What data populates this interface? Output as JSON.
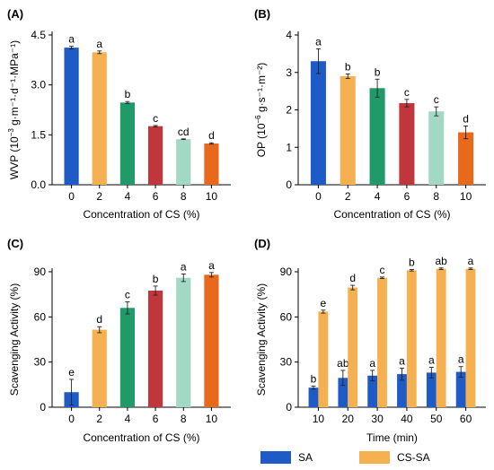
{
  "chart_data": [
    {
      "id": "A",
      "type": "bar",
      "panel_label": "(A)",
      "categories": [
        "0",
        "2",
        "4",
        "6",
        "8",
        "10"
      ],
      "values": [
        4.12,
        3.98,
        2.47,
        1.76,
        1.37,
        1.24
      ],
      "errors": [
        0.04,
        0.04,
        0.03,
        0.02,
        0.01,
        0.02
      ],
      "labels": [
        "a",
        "a",
        "b",
        "c",
        "cd",
        "d"
      ],
      "colors": [
        "#1f5bc6",
        "#f5b04f",
        "#1f9a68",
        "#c0363c",
        "#a3d9c4",
        "#e8681c"
      ],
      "xlabel": "Concentration of CS (%)",
      "ylabel_main": "WVP (10",
      "ylabel_exp": "−3",
      "ylabel_rest": " g·m⁻¹·d⁻¹·MPa⁻¹)",
      "ylim": [
        0,
        4.5
      ],
      "yticks": [
        0.0,
        1.5,
        3.0,
        4.5
      ],
      "ytick_labels": [
        "0.0",
        "1.5",
        "3.0",
        "4.5"
      ]
    },
    {
      "id": "B",
      "type": "bar",
      "panel_label": "(B)",
      "categories": [
        "0",
        "2",
        "4",
        "6",
        "8",
        "10"
      ],
      "values": [
        3.3,
        2.9,
        2.58,
        2.18,
        1.96,
        1.4
      ],
      "errors": [
        0.33,
        0.06,
        0.24,
        0.1,
        0.12,
        0.17
      ],
      "labels": [
        "a",
        "b",
        "b",
        "c",
        "c",
        "d"
      ],
      "colors": [
        "#1f5bc6",
        "#f5b04f",
        "#1f9a68",
        "#c0363c",
        "#a3d9c4",
        "#e8681c"
      ],
      "xlabel": "Concentration of CS (%)",
      "ylabel_main": "OP (10",
      "ylabel_exp": "−6",
      "ylabel_rest": " g·s⁻¹·m⁻²)",
      "ylim": [
        0,
        4
      ],
      "yticks": [
        0,
        1,
        2,
        3,
        4
      ],
      "ytick_labels": [
        "0",
        "1",
        "2",
        "3",
        "4"
      ]
    },
    {
      "id": "C",
      "type": "bar",
      "panel_label": "(C)",
      "categories": [
        "0",
        "2",
        "4",
        "6",
        "8",
        "10"
      ],
      "values": [
        10,
        51.5,
        66,
        77.5,
        86,
        88
      ],
      "errors": [
        8.5,
        2,
        4,
        3,
        2.5,
        1.5
      ],
      "labels": [
        "e",
        "d",
        "c",
        "b",
        "a",
        "a"
      ],
      "colors": [
        "#1f5bc6",
        "#f5b04f",
        "#1f9a68",
        "#c0363c",
        "#a3d9c4",
        "#e8681c"
      ],
      "xlabel": "Concentration of CS (%)",
      "ylabel_main": "Scavenging Activity (%)",
      "ylabel_exp": "",
      "ylabel_rest": "",
      "ylim": [
        0,
        90
      ],
      "yticks": [
        0,
        30,
        60,
        90
      ],
      "ytick_labels": [
        "0",
        "30",
        "60",
        "90"
      ]
    },
    {
      "id": "D",
      "type": "grouped-bar",
      "panel_label": "(D)",
      "categories": [
        "10",
        "20",
        "30",
        "40",
        "50",
        "60"
      ],
      "series": [
        {
          "name": "SA",
          "color": "#1f5bc6",
          "values": [
            13,
            19.5,
            21,
            22,
            23,
            23.5
          ],
          "errors": [
            1,
            5,
            3.5,
            4,
            3.5,
            3.5
          ],
          "labels": [
            "b",
            "ab",
            "a",
            "a",
            "a",
            "a"
          ]
        },
        {
          "name": "CS-SA",
          "color": "#f5b04f",
          "values": [
            63.5,
            79.5,
            86,
            91,
            92,
            92
          ],
          "errors": [
            1,
            1.5,
            0.5,
            0.5,
            0.5,
            0.5
          ],
          "labels": [
            "e",
            "d",
            "c",
            "b",
            "ab",
            "a"
          ]
        }
      ],
      "xlabel": "Time (min)",
      "ylabel_main": "Scavenging Activity (%)",
      "ylabel_exp": "",
      "ylabel_rest": "",
      "ylim": [
        0,
        90
      ],
      "yticks": [
        0,
        30,
        60,
        90
      ],
      "ytick_labels": [
        "0",
        "30",
        "60",
        "90"
      ],
      "legend_position": "bottom"
    }
  ]
}
